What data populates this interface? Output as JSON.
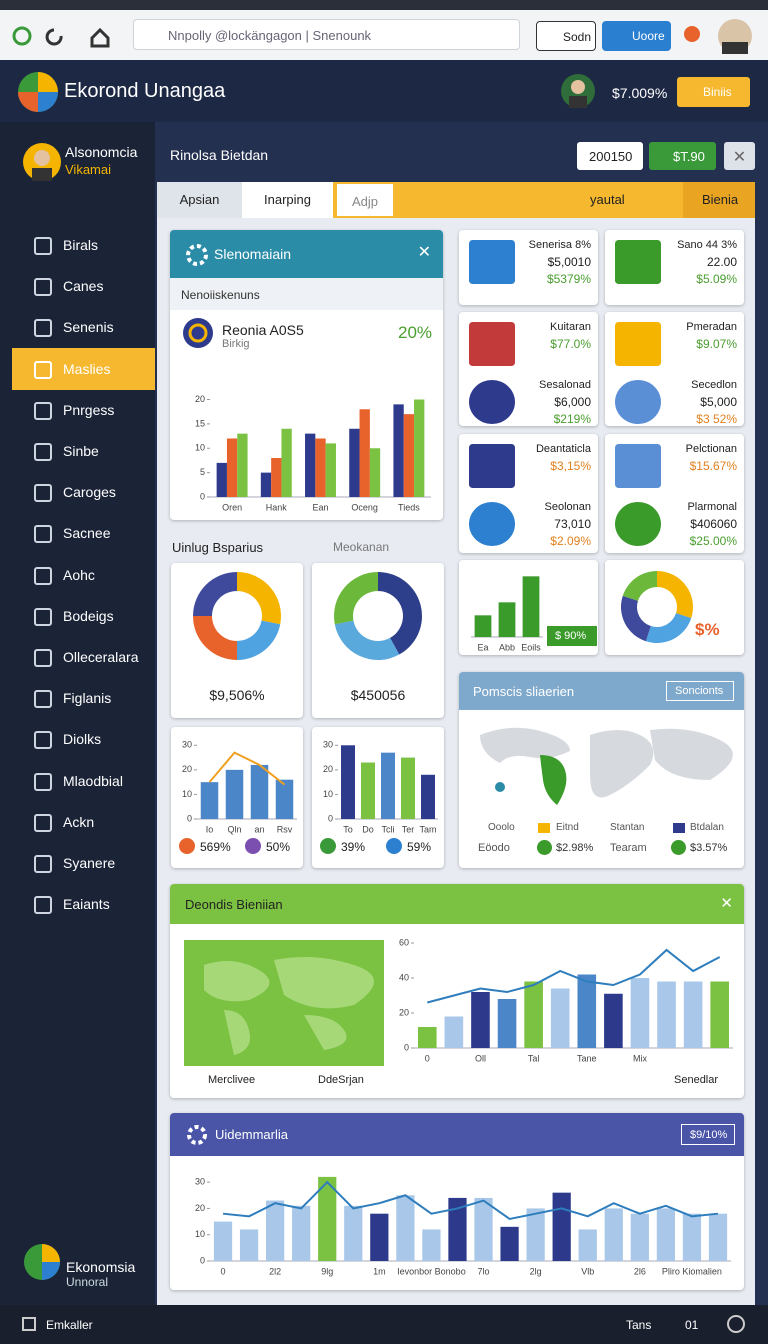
{
  "browser": {
    "search": "Nnpolly @lockängagon | Snenounk",
    "buttons": [
      "Sodn",
      "Uoore"
    ]
  },
  "header": {
    "title": "Ekorond Unangaa",
    "amount": "$7.009%",
    "button": "Biniis"
  },
  "sidebar": {
    "user": "Alsonomcia",
    "role": "Vikamai",
    "items": [
      "Birals",
      "Canes",
      "Senenis",
      "Maslies",
      "Pnrgess",
      "Sinbe",
      "Caroges",
      "Sacnee",
      "Aohc",
      "Bodeigs",
      "Olleceralara",
      "Figlanis",
      "Diolks",
      "Mlaodbial",
      "Ackn",
      "Syanere",
      "Eaiants"
    ],
    "active": 3,
    "brand": "Ekonomsia",
    "brand_sub": "Unnoral"
  },
  "toolbar": {
    "title": "Rinolsa Bietdan",
    "value": "200150",
    "badge": "$T.90"
  },
  "tabs": {
    "items": [
      "Apsian",
      "Inarping",
      "Adjp"
    ],
    "right": [
      "yautal",
      "Bienia"
    ]
  },
  "panel": {
    "title": "Slenomaiain",
    "subtitle": "Nenoiiskenuns",
    "metric": "Reonia A0S5",
    "metric_sub": "Birkig",
    "metric_value": "20%",
    "chart": {
      "type": "bar",
      "categories": [
        "Oren",
        "Hank",
        "Ean",
        "Oceng",
        "Tieds"
      ],
      "ylim": [
        0,
        24
      ],
      "yticks": [
        0,
        5,
        10,
        15,
        20
      ],
      "series": [
        {
          "color": "#2e3a8c",
          "values": [
            7,
            5,
            13,
            14,
            19
          ]
        },
        {
          "color": "#e8622c",
          "values": [
            12,
            8,
            12,
            18,
            17
          ]
        },
        {
          "color": "#7cc242",
          "values": [
            13,
            14,
            11,
            10,
            20
          ]
        }
      ]
    }
  },
  "section": {
    "left": "Uinlug Bsparius",
    "right": "Meokanan"
  },
  "donuts": [
    {
      "type": "pie",
      "values": [
        28,
        22,
        25,
        25
      ],
      "colors": [
        "#f4b400",
        "#4fa3e0",
        "#e8622c",
        "#3f4a9c"
      ],
      "label": "$9,506%"
    },
    {
      "type": "pie",
      "values": [
        42,
        30,
        28
      ],
      "colors": [
        "#2d3f8a",
        "#5aa9dc",
        "#6bb83a"
      ],
      "label": "$450056"
    }
  ],
  "minis": [
    {
      "type": "bar",
      "categories": [
        "Io",
        "Qln",
        "an",
        "Rsv"
      ],
      "ylim": [
        0,
        35
      ],
      "yticks": [
        0,
        10,
        20,
        30
      ],
      "series": [
        {
          "color": "#4a86c8",
          "values": [
            15,
            20,
            22,
            16
          ]
        },
        {
          "type": "line",
          "color": "#f0a020",
          "values": [
            15,
            27,
            22,
            14
          ]
        }
      ],
      "footer": [
        {
          "text": "569%",
          "color": "#e8622c"
        },
        {
          "text": "50%",
          "color": "#7a4fb0"
        }
      ]
    },
    {
      "type": "bar",
      "categories": [
        "To",
        "Do",
        "Tcli",
        "Ter",
        "Tam"
      ],
      "ylim": [
        0,
        35
      ],
      "yticks": [
        0,
        10,
        20,
        30
      ],
      "series": [
        {
          "colors": [
            "#2e3a8c",
            "#7cc242",
            "#4a86c8",
            "#7cc242",
            "#2e3a8c"
          ],
          "values": [
            30,
            23,
            27,
            25,
            18
          ]
        }
      ],
      "footer": [
        {
          "text": "39%",
          "color": "#3a9a3a"
        },
        {
          "text": "59%",
          "color": "#2d7fd0"
        }
      ]
    }
  ],
  "kpis": [
    {
      "entries": [
        {
          "title": "Senerisa 8%",
          "value": "$5,0010",
          "change": "$5379%",
          "color": "#4a9e2f"
        }
      ]
    },
    {
      "entries": [
        {
          "title": "Sano 44 3%",
          "value": "22.00",
          "change": "$5.09%",
          "color": "#4a9e2f"
        }
      ]
    },
    {
      "entries": [
        {
          "title": "Kuitaran",
          "change": "$77.0%",
          "color": "#4a9e2f"
        },
        {
          "title": "Sesalonad",
          "value": "$6,000",
          "change": "$219%",
          "color": "#4a9e2f"
        }
      ]
    },
    {
      "entries": [
        {
          "title": "Pmeradan",
          "change": "$9.07%",
          "color": "#4a9e2f"
        },
        {
          "title": "Secedlon",
          "value": "$5,000",
          "change": "$3 52%",
          "color": "#e0801e"
        }
      ]
    },
    {
      "entries": [
        {
          "title": "Deantaticla",
          "change": "$3,15%",
          "color": "#e0801e"
        },
        {
          "title": "Seolonan",
          "value": "73,010",
          "change": "$2.09%",
          "color": "#e0801e"
        }
      ]
    },
    {
      "entries": [
        {
          "title": "Pelctionan",
          "change": "$15.67%",
          "color": "#e0801e"
        },
        {
          "title": "Plarmonal",
          "value": "$406060",
          "change": "$25.00%",
          "color": "#4a9e2f"
        }
      ]
    }
  ],
  "mini_kpi": {
    "bar": {
      "type": "bar",
      "categories": [
        "Ea",
        "Abb",
        "Eoils"
      ],
      "ylim": [
        0,
        30
      ],
      "series": [
        {
          "color": "#3a9a2a",
          "values": [
            10,
            16,
            28
          ]
        }
      ],
      "badge": "$ 90%"
    },
    "pie": {
      "type": "pie",
      "values": [
        30,
        25,
        25,
        20
      ],
      "colors": [
        "#f4b400",
        "#4fa3e0",
        "#3f4a9c",
        "#6bb83a"
      ],
      "label": "$%"
    }
  },
  "map": {
    "title": "Pomscis sliaerien",
    "button": "Soncionts",
    "legend": [
      "Ooolo",
      "Eitnd",
      "Stantan",
      "Btdalan"
    ],
    "stats": [
      "Eöodo",
      "$2.98%",
      "Tearam",
      "$3.57%"
    ]
  },
  "regional": {
    "title": "Deondis Bieniian",
    "map_labels": [
      "Merclivee",
      "DdeSrjan"
    ],
    "note": "Senedlar",
    "chart": {
      "type": "bar",
      "categories": [
        "0",
        null,
        "Oll",
        null,
        "Tal",
        null,
        "Tane",
        null,
        "Mix",
        null,
        null,
        null
      ],
      "ylim": [
        0,
        60
      ],
      "yticks": [
        0,
        20,
        40,
        60
      ],
      "series": [
        {
          "colors": [
            "#7cc242",
            "#a9c7e8",
            "#2d3a8c",
            "#4a86c8",
            "#7cc242",
            "#a9c7e8",
            "#4a86c8",
            "#2d3a8c",
            "#a9c7e8",
            "#a9c7e8",
            "#a9c7e8",
            "#7cc242"
          ],
          "values": [
            12,
            18,
            32,
            28,
            38,
            34,
            42,
            31,
            40,
            38,
            38,
            38
          ]
        },
        {
          "type": "line",
          "color": "#2e7dbd",
          "values": [
            26,
            30,
            34,
            32,
            36,
            44,
            38,
            36,
            42,
            56,
            44,
            52
          ]
        }
      ]
    }
  },
  "summary": {
    "title": "Uidemmarlia",
    "badge": "$9/10%",
    "chart": {
      "type": "bar",
      "categories": [
        "0",
        null,
        "2l2",
        null,
        "9lg",
        null,
        "1m",
        null,
        "Ievonbor Bonobo",
        null,
        "7lo",
        null,
        "2lg",
        null,
        "Vlb",
        null,
        "2l6",
        null,
        "Pliro Kiomalien",
        null
      ],
      "ylim": [
        0,
        35
      ],
      "yticks": [
        0,
        10,
        20,
        30
      ],
      "series": [
        {
          "colors": [
            "#a9c7e8",
            "#a9c7e8",
            "#a9c7e8",
            "#a9c7e8",
            "#7cc242",
            "#a9c7e8",
            "#2d3a8c",
            "#a9c7e8",
            "#a9c7e8",
            "#2d3a8c",
            "#a9c7e8",
            "#2d3a8c",
            "#a9c7e8",
            "#2d3a8c",
            "#a9c7e8",
            "#a9c7e8",
            "#a9c7e8",
            "#a9c7e8",
            "#a9c7e8",
            "#a9c7e8"
          ],
          "values": [
            15,
            12,
            23,
            21,
            32,
            21,
            18,
            25,
            12,
            24,
            24,
            13,
            20,
            26,
            12,
            20,
            18,
            20,
            18,
            18
          ]
        },
        {
          "type": "line",
          "color": "#2e7dbd",
          "values": [
            18,
            17,
            22,
            20,
            30,
            20,
            22,
            25,
            18,
            20,
            23,
            16,
            18,
            20,
            17,
            22,
            18,
            21,
            17,
            18
          ]
        }
      ]
    }
  },
  "footer": {
    "left": "Emkaller",
    "right": [
      "Tans",
      "01"
    ]
  }
}
